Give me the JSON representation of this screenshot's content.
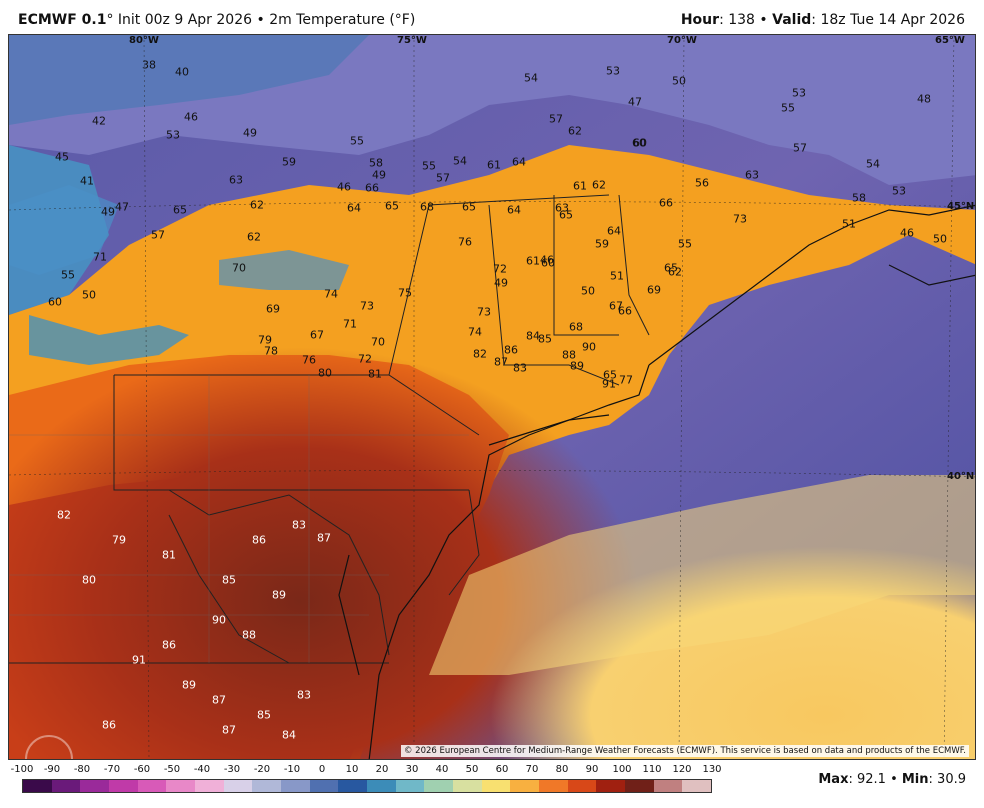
{
  "header": {
    "model": "ECMWF 0.1",
    "init": "Init 00z 9 Apr 2026",
    "product": "2m Temperature (°F)",
    "hour_label": "Hour",
    "hour": "138",
    "valid_label": "Valid",
    "valid": "18z Tue 14 Apr 2026"
  },
  "geo_labels": {
    "lon": [
      "80°W",
      "75°W",
      "70°W",
      "65°W"
    ],
    "lat": [
      "45°N",
      "40°N"
    ]
  },
  "temp_labels": [
    "38",
    "40",
    "42",
    "46",
    "45",
    "41",
    "49",
    "47",
    "53",
    "63",
    "62",
    "65",
    "57",
    "59",
    "49",
    "46",
    "55",
    "58",
    "55",
    "54",
    "61",
    "64",
    "57",
    "49",
    "66",
    "65",
    "64",
    "68",
    "65",
    "64",
    "63",
    "61",
    "62",
    "65",
    "54",
    "53",
    "50",
    "46",
    "47",
    "53",
    "48",
    "55",
    "57",
    "60",
    "62",
    "57",
    "56",
    "60",
    "54",
    "58",
    "53",
    "51",
    "49",
    "46",
    "50",
    "59",
    "55",
    "63",
    "66",
    "65",
    "62",
    "64",
    "62",
    "73",
    "70",
    "69",
    "74",
    "67",
    "76",
    "72",
    "61",
    "60",
    "50",
    "51",
    "66",
    "67",
    "68",
    "69",
    "71",
    "55",
    "50",
    "60",
    "73",
    "75",
    "71",
    "73",
    "74",
    "70",
    "72",
    "76",
    "80",
    "79",
    "78",
    "81",
    "82",
    "83",
    "84",
    "85",
    "86",
    "87",
    "88",
    "89",
    "90",
    "91",
    "77",
    "65"
  ],
  "copyright": "© 2026 European Centre for Medium-Range Weather Forecasts (ECMWF). This service is based on data and products of the ECMWF.",
  "scale": {
    "ticks": [
      "-100",
      "-90",
      "-80",
      "-70",
      "-60",
      "-50",
      "-40",
      "-30",
      "-20",
      "-10",
      "0",
      "10",
      "20",
      "30",
      "40",
      "50",
      "60",
      "70",
      "80",
      "90",
      "100",
      "110",
      "120",
      "130"
    ],
    "colors": [
      "#3a0a4a",
      "#6a1a7a",
      "#9a2a9a",
      "#c03aa8",
      "#d85ab8",
      "#e888c8",
      "#f0b0d8",
      "#d8d0e8",
      "#b0b8d8",
      "#8898c8",
      "#5070b0",
      "#2858a0",
      "#3c8cb8",
      "#70b8c8",
      "#a0d0b0",
      "#d8e0a0",
      "#f8e070",
      "#f8b040",
      "#f07828",
      "#d84818",
      "#a02010",
      "#702018",
      "#c08080",
      "#e0c0c0"
    ]
  },
  "stats": {
    "max_label": "Max",
    "max": "92.1",
    "min_label": "Min",
    "min": "30.9"
  }
}
